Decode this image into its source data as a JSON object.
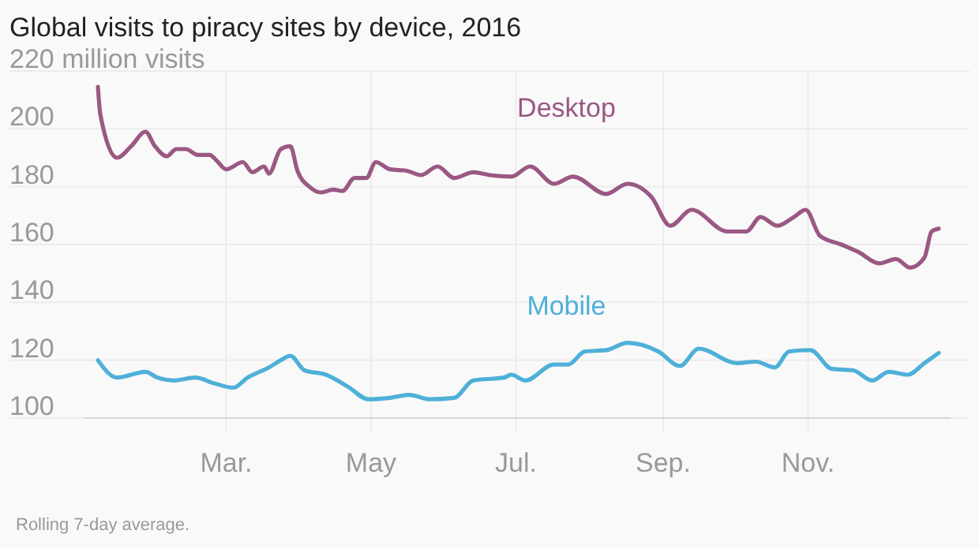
{
  "chart_data": {
    "type": "line",
    "title": "Global visits to piracy sites by device, 2016",
    "annotations": [
      "Rolling 7-day average."
    ],
    "xlim": [
      "2016-01-01",
      "2016-12-31"
    ],
    "xticks": [
      {
        "value": "2016-03-01",
        "label": "Mar."
      },
      {
        "value": "2016-05-01",
        "label": "May"
      },
      {
        "value": "2016-07-01",
        "label": "Jul."
      },
      {
        "value": "2016-09-01",
        "label": "Sep."
      },
      {
        "value": "2016-11-01",
        "label": "Nov."
      }
    ],
    "ylim": [
      100,
      220
    ],
    "yticks": [
      100,
      120,
      140,
      160,
      180,
      200,
      {
        "value": 220,
        "label": "220 million visits"
      }
    ],
    "grid": true,
    "marker": "none",
    "line_style": "solid",
    "series": [
      {
        "name": "Desktop",
        "color": "#9a5883",
        "x": [
          "2016-01-07",
          "2016-01-08",
          "2016-01-15",
          "2016-01-21",
          "2016-01-27",
          "2016-01-31",
          "2016-02-05",
          "2016-02-09",
          "2016-02-13",
          "2016-02-18",
          "2016-02-23",
          "2016-02-26",
          "2016-03-01",
          "2016-03-08",
          "2016-03-12",
          "2016-03-17",
          "2016-03-19",
          "2016-03-24",
          "2016-03-28",
          "2016-03-31",
          "2016-04-05",
          "2016-04-10",
          "2016-04-15",
          "2016-04-19",
          "2016-04-24",
          "2016-04-29",
          "2016-05-03",
          "2016-05-09",
          "2016-05-16",
          "2016-05-22",
          "2016-05-29",
          "2016-06-05",
          "2016-06-13",
          "2016-06-20",
          "2016-06-29",
          "2016-07-07",
          "2016-07-17",
          "2016-07-25",
          "2016-08-08",
          "2016-08-17",
          "2016-08-27",
          "2016-09-04",
          "2016-09-13",
          "2016-09-28",
          "2016-10-06",
          "2016-10-12",
          "2016-10-19",
          "2016-10-26",
          "2016-10-31",
          "2016-11-06",
          "2016-11-15",
          "2016-11-22",
          "2016-12-01",
          "2016-12-08",
          "2016-12-14",
          "2016-12-20",
          "2016-12-23",
          "2016-12-26"
        ],
        "values": [
          214.5,
          205,
          190,
          194,
          199,
          194,
          190.5,
          193,
          193,
          191,
          191,
          189,
          186,
          188.5,
          185,
          187,
          184.5,
          193,
          194,
          185.5,
          180,
          178,
          179,
          178.5,
          183,
          183,
          188.5,
          186,
          185.5,
          184,
          187,
          183,
          185,
          184,
          183.5,
          187,
          181,
          183.5,
          177.5,
          181,
          176.5,
          166.5,
          172,
          164.5,
          164.5,
          169.5,
          166.5,
          169.5,
          172,
          163,
          160,
          157.5,
          153.5,
          155,
          152,
          155.5,
          164.5,
          165.5
        ]
      },
      {
        "name": "Mobile",
        "color": "#4eb0d8",
        "x": [
          "2016-01-07",
          "2016-01-15",
          "2016-01-27",
          "2016-02-01",
          "2016-02-08",
          "2016-02-17",
          "2016-02-25",
          "2016-03-04",
          "2016-03-10",
          "2016-03-19",
          "2016-03-24",
          "2016-03-28",
          "2016-04-03",
          "2016-04-12",
          "2016-04-21",
          "2016-04-30",
          "2016-05-09",
          "2016-05-17",
          "2016-05-26",
          "2016-06-05",
          "2016-06-13",
          "2016-06-26",
          "2016-06-29",
          "2016-07-05",
          "2016-07-17",
          "2016-07-23",
          "2016-07-30",
          "2016-08-08",
          "2016-08-17",
          "2016-08-30",
          "2016-09-08",
          "2016-09-16",
          "2016-10-02",
          "2016-10-10",
          "2016-10-18",
          "2016-10-24",
          "2016-11-02",
          "2016-11-11",
          "2016-11-20",
          "2016-11-28",
          "2016-12-05",
          "2016-12-13",
          "2016-12-20",
          "2016-12-26"
        ],
        "values": [
          120,
          114,
          116,
          114,
          113,
          114,
          112,
          110.5,
          114,
          117.5,
          120,
          121.5,
          116.5,
          115,
          111,
          106.5,
          107,
          108,
          106.5,
          107,
          113,
          114,
          115,
          113,
          118.5,
          118.5,
          123,
          123.5,
          126,
          123,
          118,
          124,
          119,
          119.5,
          117.5,
          123,
          123.5,
          117,
          116.5,
          113,
          116,
          115,
          119,
          122.5
        ]
      }
    ]
  }
}
